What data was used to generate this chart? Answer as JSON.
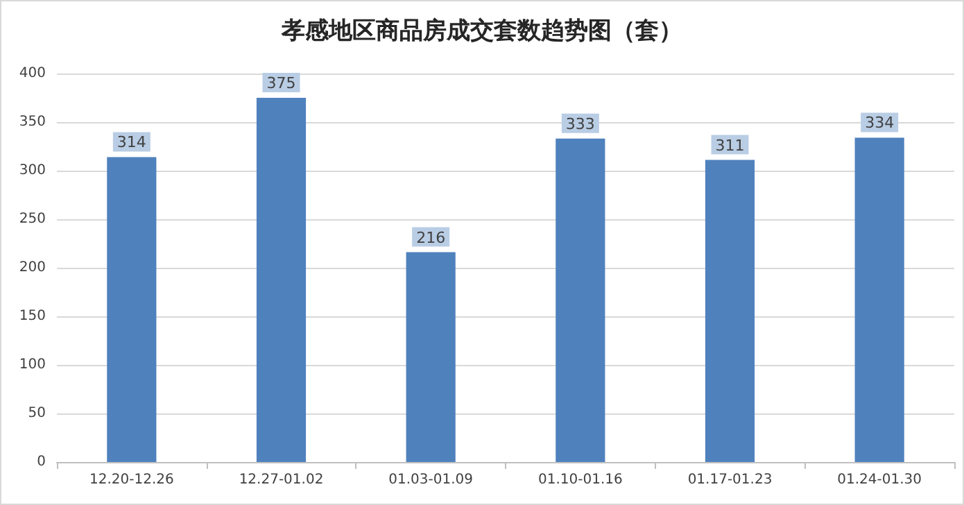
{
  "chart_data": {
    "type": "bar",
    "title": "孝感地区商品房成交套数趋势图（套）",
    "categories": [
      "12.20-12.26",
      "12.27-01.02",
      "01.03-01.09",
      "01.10-01.16",
      "01.17-01.23",
      "01.24-01.30"
    ],
    "values": [
      314,
      375,
      216,
      333,
      311,
      334
    ],
    "color": "#4f81bd",
    "ylim": [
      0,
      400
    ],
    "yticks": [
      0,
      50,
      100,
      150,
      200,
      250,
      300,
      350,
      400
    ],
    "grid": "y",
    "data_labels": true
  }
}
